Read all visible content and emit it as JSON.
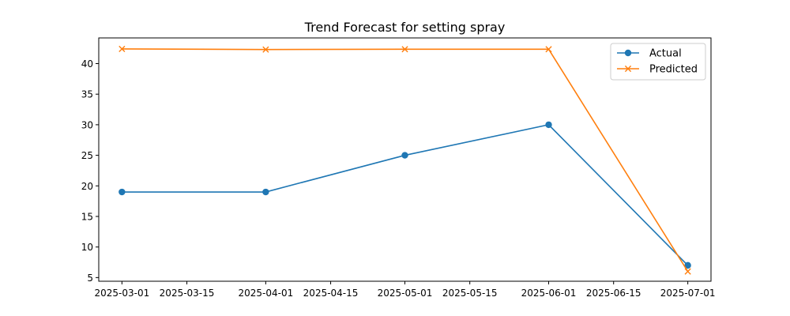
{
  "chart_data": {
    "type": "line",
    "title": "Trend Forecast for setting spray",
    "xlabel": "",
    "ylabel": "",
    "x": [
      "2025-03-01",
      "2025-04-01",
      "2025-05-01",
      "2025-06-01",
      "2025-07-01"
    ],
    "xticks": [
      "2025-03-01",
      "2025-03-15",
      "2025-04-01",
      "2025-04-15",
      "2025-05-01",
      "2025-05-15",
      "2025-06-01",
      "2025-06-15",
      "2025-07-01"
    ],
    "yticks": [
      5,
      10,
      15,
      20,
      25,
      30,
      35,
      40
    ],
    "xlim": [
      "2025-02-24",
      "2025-07-06"
    ],
    "ylim": [
      4.4,
      44.2
    ],
    "grid": false,
    "legend": "top-right",
    "series": [
      {
        "name": "Actual",
        "values": [
          19,
          19,
          25,
          30,
          7
        ],
        "color": "#1f77b4",
        "marker": "circle"
      },
      {
        "name": "Predicted",
        "values": [
          42.4,
          42.3,
          42.35,
          42.35,
          6
        ],
        "color": "#ff7f0e",
        "marker": "x"
      }
    ]
  }
}
